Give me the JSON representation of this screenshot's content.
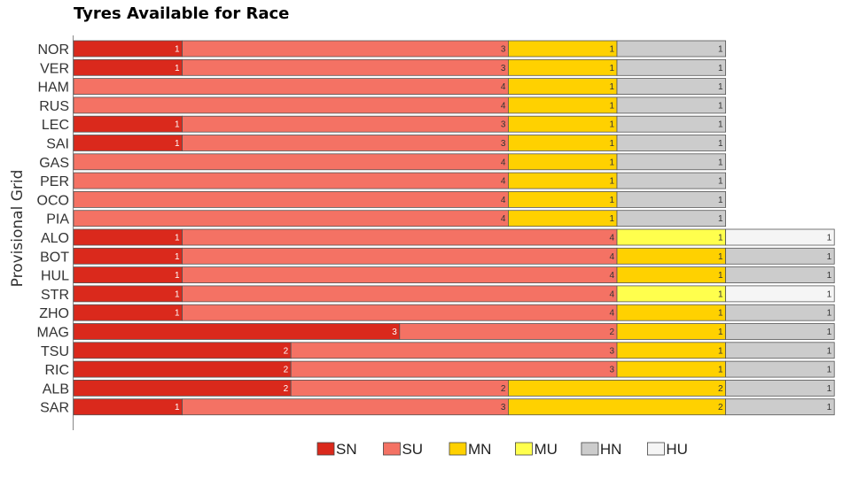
{
  "chart_data": {
    "type": "bar",
    "stacked": true,
    "orientation": "horizontal",
    "title": "Tyres Available for Race",
    "ylabel": "Provisional Grid",
    "xlabel": "",
    "xlim": [
      0,
      7
    ],
    "categories": [
      "NOR",
      "VER",
      "HAM",
      "RUS",
      "LEC",
      "SAI",
      "GAS",
      "PER",
      "OCO",
      "PIA",
      "ALO",
      "BOT",
      "HUL",
      "STR",
      "ZHO",
      "MAG",
      "TSU",
      "RIC",
      "ALB",
      "SAR"
    ],
    "series": [
      {
        "name": "SN",
        "color": "#da291c",
        "values": [
          1,
          1,
          0,
          0,
          1,
          1,
          0,
          0,
          0,
          0,
          1,
          1,
          1,
          1,
          1,
          3,
          2,
          2,
          2,
          1
        ]
      },
      {
        "name": "SU",
        "color": "#f47264",
        "values": [
          3,
          3,
          4,
          4,
          3,
          3,
          4,
          4,
          4,
          4,
          4,
          4,
          4,
          4,
          4,
          2,
          3,
          3,
          2,
          3
        ]
      },
      {
        "name": "MN",
        "color": "#ffd100",
        "values": [
          1,
          1,
          1,
          1,
          1,
          1,
          1,
          1,
          1,
          1,
          0,
          1,
          1,
          0,
          1,
          1,
          1,
          1,
          2,
          2
        ]
      },
      {
        "name": "MU",
        "color": "#ffff4d",
        "values": [
          0,
          0,
          0,
          0,
          0,
          0,
          0,
          0,
          0,
          0,
          1,
          0,
          0,
          1,
          0,
          0,
          0,
          0,
          0,
          0
        ]
      },
      {
        "name": "HN",
        "color": "#cccccc",
        "values": [
          1,
          1,
          1,
          1,
          1,
          1,
          1,
          1,
          1,
          1,
          0,
          1,
          1,
          0,
          1,
          1,
          1,
          1,
          1,
          1
        ]
      },
      {
        "name": "HU",
        "color": "#f5f5f5",
        "values": [
          0,
          0,
          0,
          0,
          0,
          0,
          0,
          0,
          0,
          0,
          1,
          0,
          0,
          1,
          0,
          0,
          0,
          0,
          0,
          0
        ]
      }
    ],
    "legend": "bottom-center",
    "grid": false
  }
}
